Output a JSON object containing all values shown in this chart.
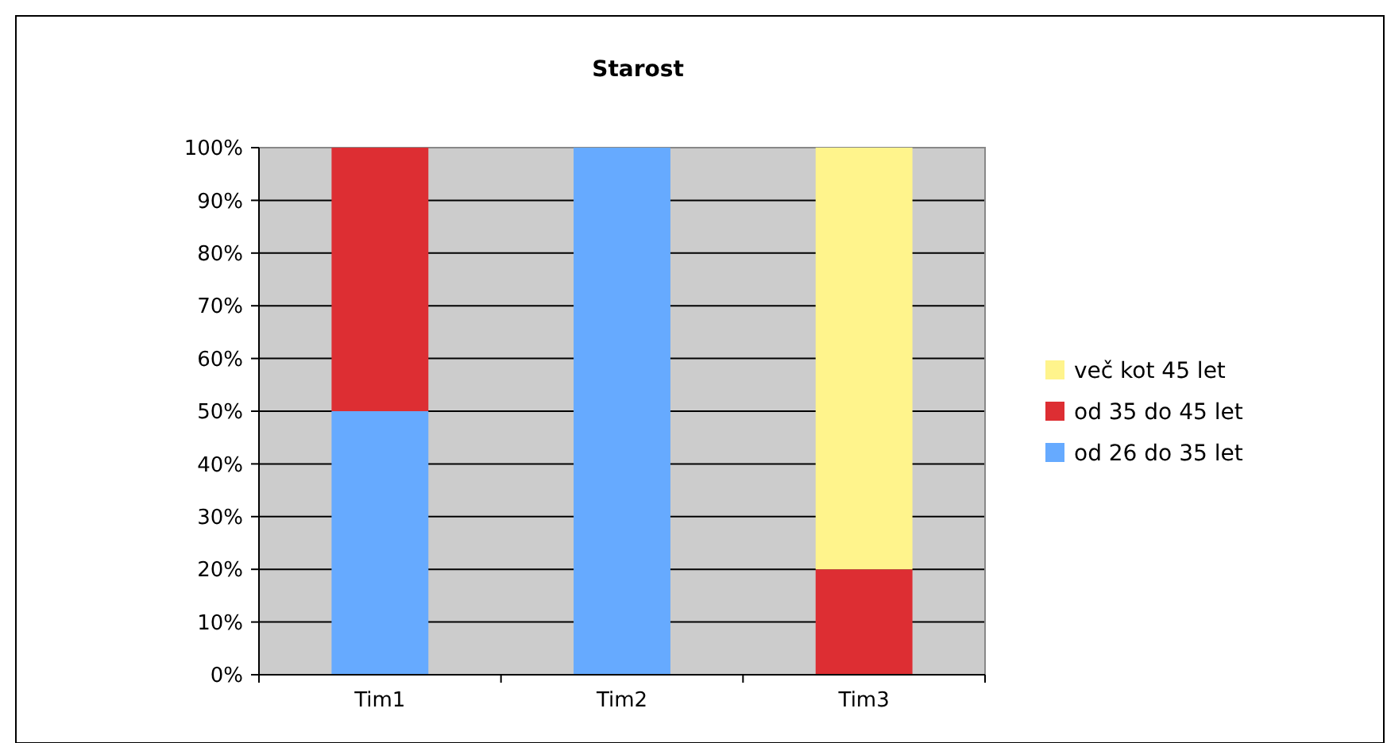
{
  "chart_data": {
    "type": "bar",
    "title": "Starost",
    "stacked": true,
    "categories": [
      "Tim1",
      "Tim2",
      "Tim3"
    ],
    "series": [
      {
        "name": "od 26 do 35 let",
        "color": "#66aaff",
        "values": [
          50,
          100,
          0
        ]
      },
      {
        "name": "od 35 do 45 let",
        "color": "#dd2e33",
        "values": [
          50,
          0,
          20
        ]
      },
      {
        "name": "več kot 45 let",
        "color": "#fff48c",
        "values": [
          0,
          0,
          80
        ]
      }
    ],
    "ylim": [
      0,
      100
    ],
    "yticks": [
      {
        "value": 0,
        "label": "0%"
      },
      {
        "value": 10,
        "label": "10%"
      },
      {
        "value": 20,
        "label": "20%"
      },
      {
        "value": 30,
        "label": "30%"
      },
      {
        "value": 40,
        "label": "40%"
      },
      {
        "value": 50,
        "label": "50%"
      },
      {
        "value": 60,
        "label": "60%"
      },
      {
        "value": 70,
        "label": "70%"
      },
      {
        "value": 80,
        "label": "80%"
      },
      {
        "value": 90,
        "label": "90%"
      },
      {
        "value": 100,
        "label": "100%"
      }
    ],
    "grid": "y",
    "legend": "right"
  }
}
